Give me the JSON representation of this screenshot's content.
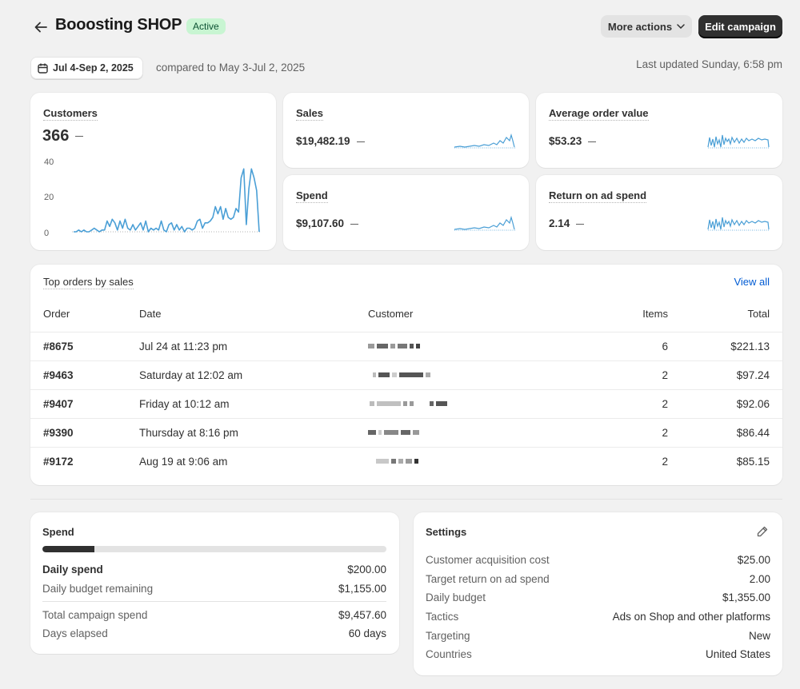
{
  "header": {
    "title": "Booosting SHOP",
    "status": "Active",
    "more_actions": "More actions",
    "edit_campaign": "Edit campaign"
  },
  "toolbar": {
    "date_range": "Jul 4-Sep 2, 2025",
    "compare": "compared to May 3-Jul 2, 2025",
    "last_updated": "Last updated Sunday, 6:58 pm"
  },
  "metrics": {
    "customers": {
      "label": "Customers",
      "value": "366"
    },
    "sales": {
      "label": "Sales",
      "value": "$19,482.19"
    },
    "aov": {
      "label": "Average order value",
      "value": "$53.23"
    },
    "spend": {
      "label": "Spend",
      "value": "$9,107.60"
    },
    "roas": {
      "label": "Return on ad spend",
      "value": "2.14"
    }
  },
  "chart_data": {
    "type": "line",
    "title": "Customers",
    "ylim": [
      0,
      40
    ],
    "yticks": [
      "40",
      "20",
      "0"
    ],
    "values": [
      0,
      0,
      1,
      0,
      1,
      0,
      0,
      1,
      2,
      1,
      0,
      1,
      1,
      6,
      3,
      7,
      5,
      1,
      6,
      2,
      7,
      2,
      1,
      4,
      1,
      3,
      5,
      1,
      6,
      0,
      2,
      1,
      2,
      1,
      6,
      1,
      0,
      4,
      5,
      1,
      4,
      1,
      3,
      0,
      2,
      2,
      1,
      2,
      6,
      7,
      2,
      5,
      5,
      6,
      8,
      14,
      10,
      14,
      7,
      13,
      8,
      7,
      8,
      13,
      11,
      30,
      35,
      4,
      24,
      35,
      30,
      23,
      0
    ],
    "color": "#4a9fd6"
  },
  "orders": {
    "title": "Top orders by sales",
    "view_all": "View all",
    "columns": {
      "order": "Order",
      "date": "Date",
      "customer": "Customer",
      "items": "Items",
      "total": "Total"
    },
    "rows": [
      {
        "order": "#8675",
        "date": "Jul 24 at 11:23 pm",
        "items": "6",
        "total": "$221.13"
      },
      {
        "order": "#9463",
        "date": "Saturday at 12:02 am",
        "items": "2",
        "total": "$97.24"
      },
      {
        "order": "#9407",
        "date": "Friday at 10:12 am",
        "items": "2",
        "total": "$92.06"
      },
      {
        "order": "#9390",
        "date": "Thursday at 8:16 pm",
        "items": "2",
        "total": "$86.44"
      },
      {
        "order": "#9172",
        "date": "Aug 19 at 9:06 am",
        "items": "2",
        "total": "$85.15"
      }
    ]
  },
  "spend_card": {
    "title": "Spend",
    "progress": 0.15,
    "daily_spend_label": "Daily spend",
    "daily_spend_value": "$200.00",
    "remaining_label": "Daily budget remaining",
    "remaining_value": "$1,155.00",
    "total_label": "Total campaign spend",
    "total_value": "$9,457.60",
    "days_label": "Days elapsed",
    "days_value": "60 days"
  },
  "settings": {
    "title": "Settings",
    "cac_label": "Customer acquisition cost",
    "cac_value": "$25.00",
    "troas_label": "Target return on ad spend",
    "troas_value": "2.00",
    "budget_label": "Daily budget",
    "budget_value": "$1,355.00",
    "tactics_label": "Tactics",
    "tactics_value": "Ads on Shop and other platforms",
    "targeting_label": "Targeting",
    "targeting_value": "New",
    "countries_label": "Countries",
    "countries_value": "United States"
  }
}
